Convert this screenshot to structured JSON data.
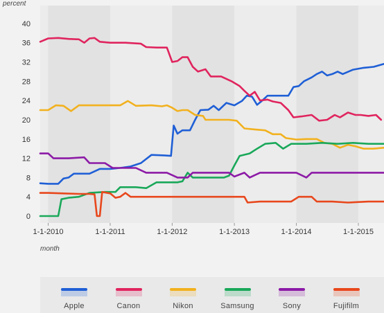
{
  "chart_data": {
    "type": "line",
    "xlabel": "month",
    "ylabel": "percent",
    "ylim": [
      0,
      42
    ],
    "yticks": [
      0,
      4,
      8,
      12,
      16,
      20,
      24,
      28,
      32,
      36,
      40
    ],
    "xlim": [
      "2009-11-15",
      "2015-06-01"
    ],
    "xticks": [
      {
        "date": "2010-01-01",
        "label": "1-1-2010"
      },
      {
        "date": "2011-01-01",
        "label": "1-1-2011"
      },
      {
        "date": "2012-01-01",
        "label": "1-1-2012"
      },
      {
        "date": "2013-01-01",
        "label": "1-1-2013"
      },
      {
        "date": "2014-01-01",
        "label": "1-1-2014"
      },
      {
        "date": "2015-01-01",
        "label": "1-1-2015"
      }
    ],
    "legend_position": "bottom",
    "grid": false,
    "series": [
      {
        "name": "Apple",
        "color": "#1f5fd6",
        "points": [
          [
            "2009-11-15",
            6.8
          ],
          [
            "2010-01-01",
            6.7
          ],
          [
            "2010-03-01",
            6.7
          ],
          [
            "2010-04-01",
            7.8
          ],
          [
            "2010-05-01",
            8.0
          ],
          [
            "2010-06-01",
            8.8
          ],
          [
            "2010-09-01",
            8.8
          ],
          [
            "2010-11-01",
            9.8
          ],
          [
            "2011-01-01",
            9.8
          ],
          [
            "2011-03-01",
            10.0
          ],
          [
            "2011-05-01",
            10.3
          ],
          [
            "2011-07-01",
            11.0
          ],
          [
            "2011-09-01",
            12.7
          ],
          [
            "2011-11-15",
            12.6
          ],
          [
            "2011-12-25",
            12.5
          ],
          [
            "2012-01-10",
            18.8
          ],
          [
            "2012-02-01",
            17.1
          ],
          [
            "2012-03-01",
            17.8
          ],
          [
            "2012-04-15",
            17.8
          ],
          [
            "2012-05-15",
            20.0
          ],
          [
            "2012-06-15",
            22.0
          ],
          [
            "2012-08-01",
            22.1
          ],
          [
            "2012-09-01",
            22.9
          ],
          [
            "2012-10-01",
            22.0
          ],
          [
            "2012-11-15",
            23.5
          ],
          [
            "2013-01-01",
            23.0
          ],
          [
            "2013-02-15",
            23.9
          ],
          [
            "2013-03-15",
            25.0
          ],
          [
            "2013-04-15",
            24.8
          ],
          [
            "2013-05-15",
            23.1
          ],
          [
            "2013-06-15",
            24.0
          ],
          [
            "2013-07-15",
            25.0
          ],
          [
            "2013-09-01",
            25.0
          ],
          [
            "2013-10-15",
            25.0
          ],
          [
            "2013-11-15",
            25.0
          ],
          [
            "2013-12-15",
            26.8
          ],
          [
            "2014-01-15",
            27.0
          ],
          [
            "2014-02-15",
            28.0
          ],
          [
            "2014-04-01",
            28.8
          ],
          [
            "2014-05-01",
            29.5
          ],
          [
            "2014-06-01",
            30.0
          ],
          [
            "2014-07-01",
            29.2
          ],
          [
            "2014-08-01",
            29.5
          ],
          [
            "2014-09-01",
            30.0
          ],
          [
            "2014-10-01",
            29.5
          ],
          [
            "2014-12-01",
            30.4
          ],
          [
            "2015-02-01",
            30.8
          ],
          [
            "2015-04-01",
            31.0
          ],
          [
            "2015-06-01",
            31.6
          ]
        ]
      },
      {
        "name": "Canon",
        "color": "#e0245e",
        "points": [
          [
            "2009-11-15",
            36.2
          ],
          [
            "2010-01-01",
            36.9
          ],
          [
            "2010-03-01",
            37.0
          ],
          [
            "2010-05-01",
            36.8
          ],
          [
            "2010-07-01",
            36.7
          ],
          [
            "2010-08-01",
            36.0
          ],
          [
            "2010-09-01",
            36.9
          ],
          [
            "2010-10-01",
            37.0
          ],
          [
            "2010-11-01",
            36.2
          ],
          [
            "2011-01-01",
            36.0
          ],
          [
            "2011-04-01",
            36.0
          ],
          [
            "2011-07-01",
            35.8
          ],
          [
            "2011-08-01",
            35.1
          ],
          [
            "2011-10-01",
            35.0
          ],
          [
            "2011-12-01",
            35.0
          ],
          [
            "2012-01-01",
            32.0
          ],
          [
            "2012-02-01",
            32.2
          ],
          [
            "2012-03-01",
            33.0
          ],
          [
            "2012-04-01",
            33.0
          ],
          [
            "2012-05-01",
            31.0
          ],
          [
            "2012-06-01",
            30.0
          ],
          [
            "2012-07-15",
            30.5
          ],
          [
            "2012-08-15",
            29.0
          ],
          [
            "2012-10-15",
            29.0
          ],
          [
            "2012-12-15",
            28.0
          ],
          [
            "2013-02-01",
            27.0
          ],
          [
            "2013-03-01",
            26.0
          ],
          [
            "2013-04-01",
            25.0
          ],
          [
            "2013-05-01",
            25.8
          ],
          [
            "2013-06-01",
            24.0
          ],
          [
            "2013-07-15",
            24.2
          ],
          [
            "2013-08-15",
            23.8
          ],
          [
            "2013-10-01",
            23.5
          ],
          [
            "2013-11-15",
            22.0
          ],
          [
            "2013-12-15",
            20.5
          ],
          [
            "2014-02-01",
            20.7
          ],
          [
            "2014-04-01",
            21.0
          ],
          [
            "2014-05-15",
            19.8
          ],
          [
            "2014-07-01",
            20.0
          ],
          [
            "2014-08-15",
            21.0
          ],
          [
            "2014-09-15",
            20.5
          ],
          [
            "2014-11-01",
            21.5
          ],
          [
            "2014-12-15",
            21.0
          ],
          [
            "2015-01-15",
            21.0
          ],
          [
            "2015-03-01",
            20.8
          ],
          [
            "2015-04-15",
            21.0
          ],
          [
            "2015-05-15",
            20.0
          ]
        ]
      },
      {
        "name": "Nikon",
        "color": "#f2b11e",
        "points": [
          [
            "2009-11-15",
            22.0
          ],
          [
            "2010-01-01",
            22.0
          ],
          [
            "2010-02-15",
            23.0
          ],
          [
            "2010-04-01",
            22.9
          ],
          [
            "2010-05-15",
            21.8
          ],
          [
            "2010-07-01",
            23.0
          ],
          [
            "2010-10-01",
            23.0
          ],
          [
            "2011-01-01",
            23.0
          ],
          [
            "2011-03-01",
            23.0
          ],
          [
            "2011-04-15",
            23.9
          ],
          [
            "2011-06-01",
            22.9
          ],
          [
            "2011-09-01",
            23.0
          ],
          [
            "2011-11-01",
            22.8
          ],
          [
            "2011-12-01",
            23.0
          ],
          [
            "2012-01-01",
            22.5
          ],
          [
            "2012-02-01",
            21.8
          ],
          [
            "2012-03-01",
            22.0
          ],
          [
            "2012-04-01",
            22.0
          ],
          [
            "2012-05-15",
            21.0
          ],
          [
            "2012-07-01",
            20.8
          ],
          [
            "2012-07-15",
            20.0
          ],
          [
            "2012-10-01",
            20.0
          ],
          [
            "2012-12-01",
            20.0
          ],
          [
            "2013-01-15",
            19.8
          ],
          [
            "2013-03-01",
            18.2
          ],
          [
            "2013-05-01",
            18.0
          ],
          [
            "2013-07-01",
            17.8
          ],
          [
            "2013-08-15",
            17.0
          ],
          [
            "2013-10-01",
            17.0
          ],
          [
            "2013-11-01",
            16.2
          ],
          [
            "2014-01-01",
            15.9
          ],
          [
            "2014-03-01",
            16.0
          ],
          [
            "2014-05-01",
            16.0
          ],
          [
            "2014-06-15",
            15.2
          ],
          [
            "2014-08-01",
            15.0
          ],
          [
            "2014-09-15",
            14.2
          ],
          [
            "2014-11-01",
            14.8
          ],
          [
            "2014-12-15",
            14.5
          ],
          [
            "2015-02-01",
            14.0
          ],
          [
            "2015-04-01",
            14.0
          ],
          [
            "2015-06-01",
            14.2
          ]
        ]
      },
      {
        "name": "Samsung",
        "color": "#1aa85a",
        "points": [
          [
            "2009-11-15",
            0.0
          ],
          [
            "2010-01-01",
            0.0
          ],
          [
            "2010-03-01",
            0.0
          ],
          [
            "2010-03-20",
            3.5
          ],
          [
            "2010-05-01",
            3.8
          ],
          [
            "2010-07-01",
            4.0
          ],
          [
            "2010-09-01",
            4.8
          ],
          [
            "2010-12-01",
            5.0
          ],
          [
            "2011-02-01",
            5.0
          ],
          [
            "2011-03-01",
            6.0
          ],
          [
            "2011-06-01",
            6.0
          ],
          [
            "2011-08-01",
            5.8
          ],
          [
            "2011-10-01",
            7.0
          ],
          [
            "2011-12-01",
            7.0
          ],
          [
            "2012-02-01",
            7.0
          ],
          [
            "2012-03-01",
            7.2
          ],
          [
            "2012-04-01",
            9.0
          ],
          [
            "2012-05-01",
            8.0
          ],
          [
            "2012-09-01",
            8.0
          ],
          [
            "2012-11-01",
            8.0
          ],
          [
            "2012-12-01",
            8.4
          ],
          [
            "2013-01-01",
            10.5
          ],
          [
            "2013-02-01",
            12.5
          ],
          [
            "2013-04-01",
            13.0
          ],
          [
            "2013-05-15",
            14.0
          ],
          [
            "2013-07-01",
            15.0
          ],
          [
            "2013-09-01",
            15.2
          ],
          [
            "2013-10-15",
            14.0
          ],
          [
            "2013-12-01",
            15.0
          ],
          [
            "2014-03-01",
            15.0
          ],
          [
            "2014-06-01",
            15.2
          ],
          [
            "2014-09-01",
            15.0
          ],
          [
            "2014-12-01",
            15.2
          ],
          [
            "2015-03-01",
            15.0
          ],
          [
            "2015-06-01",
            15.0
          ]
        ]
      },
      {
        "name": "Sony",
        "color": "#8c1aa6",
        "points": [
          [
            "2009-11-15",
            13.0
          ],
          [
            "2010-01-01",
            13.0
          ],
          [
            "2010-02-01",
            12.0
          ],
          [
            "2010-05-01",
            12.0
          ],
          [
            "2010-08-01",
            12.2
          ],
          [
            "2010-09-01",
            11.0
          ],
          [
            "2010-12-01",
            11.0
          ],
          [
            "2011-01-15",
            10.0
          ],
          [
            "2011-04-01",
            10.0
          ],
          [
            "2011-06-01",
            10.0
          ],
          [
            "2011-08-01",
            9.0
          ],
          [
            "2011-10-01",
            9.0
          ],
          [
            "2011-12-01",
            9.0
          ],
          [
            "2012-02-01",
            8.0
          ],
          [
            "2012-04-01",
            8.0
          ],
          [
            "2012-05-01",
            9.0
          ],
          [
            "2012-08-01",
            9.0
          ],
          [
            "2012-12-01",
            9.0
          ],
          [
            "2013-01-01",
            8.2
          ],
          [
            "2013-03-01",
            9.0
          ],
          [
            "2013-04-01",
            8.0
          ],
          [
            "2013-06-01",
            9.0
          ],
          [
            "2013-09-01",
            9.0
          ],
          [
            "2014-01-01",
            9.0
          ],
          [
            "2014-03-01",
            8.0
          ],
          [
            "2014-04-01",
            9.0
          ],
          [
            "2014-08-01",
            9.0
          ],
          [
            "2014-12-01",
            9.0
          ],
          [
            "2015-03-01",
            9.0
          ],
          [
            "2015-06-01",
            9.0
          ]
        ]
      },
      {
        "name": "Fujifilm",
        "color": "#e8471c",
        "points": [
          [
            "2009-11-15",
            4.8
          ],
          [
            "2010-01-01",
            4.8
          ],
          [
            "2010-04-01",
            4.7
          ],
          [
            "2010-07-01",
            4.6
          ],
          [
            "2010-09-01",
            4.6
          ],
          [
            "2010-10-01",
            4.5
          ],
          [
            "2010-10-15",
            0.0
          ],
          [
            "2010-11-01",
            0.0
          ],
          [
            "2010-11-15",
            5.0
          ],
          [
            "2011-01-01",
            4.7
          ],
          [
            "2011-02-01",
            3.8
          ],
          [
            "2011-03-01",
            4.0
          ],
          [
            "2011-04-01",
            4.8
          ],
          [
            "2011-05-01",
            4.0
          ],
          [
            "2011-08-01",
            4.0
          ],
          [
            "2012-01-01",
            4.0
          ],
          [
            "2012-05-01",
            4.0
          ],
          [
            "2012-09-01",
            4.0
          ],
          [
            "2013-01-01",
            4.0
          ],
          [
            "2013-03-01",
            4.0
          ],
          [
            "2013-03-20",
            2.8
          ],
          [
            "2013-06-01",
            3.0
          ],
          [
            "2013-09-01",
            3.0
          ],
          [
            "2013-12-01",
            3.0
          ],
          [
            "2014-01-15",
            4.0
          ],
          [
            "2014-04-01",
            4.0
          ],
          [
            "2014-05-01",
            3.0
          ],
          [
            "2014-08-01",
            3.0
          ],
          [
            "2014-11-01",
            2.8
          ],
          [
            "2015-03-01",
            3.0
          ],
          [
            "2015-06-01",
            3.0
          ]
        ]
      }
    ]
  }
}
